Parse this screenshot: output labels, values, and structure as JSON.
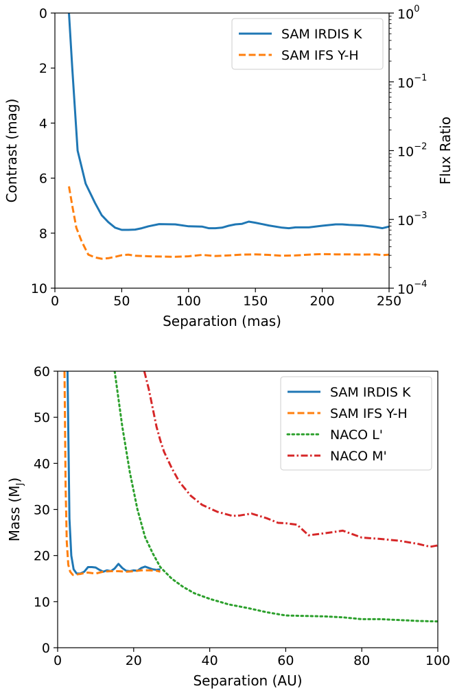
{
  "chart_data": [
    {
      "type": "line",
      "xlabel": "Separation (mas)",
      "ylabel": "Contrast (mag)",
      "y2label": "Flux Ratio",
      "xlim": [
        0,
        250
      ],
      "ylim": [
        10,
        0
      ],
      "y_inverted": true,
      "y2lim": [
        0.0001,
        1
      ],
      "y2_scale": "log",
      "xticks": [
        "0",
        "50",
        "100",
        "150",
        "200",
        "250"
      ],
      "yticks": [
        "0",
        "2",
        "4",
        "6",
        "8",
        "10"
      ],
      "y2ticks": [
        {
          "base": "10",
          "exp": "0"
        },
        {
          "base": "10",
          "exp": "−1"
        },
        {
          "base": "10",
          "exp": "−2"
        },
        {
          "base": "10",
          "exp": "−3"
        },
        {
          "base": "10",
          "exp": "−4"
        }
      ],
      "legend_position": "top-right",
      "series": [
        {
          "name": "SAM IRDIS K",
          "color": "#1f77b4",
          "style": "solid",
          "x": [
            10.5,
            13,
            15,
            17,
            20,
            23,
            27,
            30,
            35,
            40,
            45,
            50,
            55,
            60,
            65,
            70,
            78,
            90,
            100,
            110,
            115,
            120,
            125,
            130,
            135,
            140,
            145,
            150,
            160,
            170,
            175,
            180,
            190,
            200,
            210,
            215,
            220,
            230,
            240,
            245,
            250
          ],
          "values": [
            0,
            2,
            3.5,
            5,
            5.6,
            6.2,
            6.6,
            6.9,
            7.35,
            7.6,
            7.8,
            7.88,
            7.88,
            7.87,
            7.82,
            7.75,
            7.67,
            7.68,
            7.75,
            7.76,
            7.82,
            7.82,
            7.8,
            7.73,
            7.68,
            7.66,
            7.58,
            7.62,
            7.72,
            7.8,
            7.82,
            7.79,
            7.79,
            7.73,
            7.68,
            7.68,
            7.7,
            7.72,
            7.78,
            7.82,
            7.76
          ]
        },
        {
          "name": "SAM IFS Y-H",
          "color": "#ff7f0e",
          "style": "dashed",
          "x": [
            10.5,
            13,
            16,
            20,
            25,
            30,
            35,
            40,
            45,
            50,
            55,
            60,
            70,
            80,
            90,
            100,
            110,
            120,
            130,
            140,
            150,
            160,
            170,
            180,
            190,
            200,
            210,
            220,
            230,
            240,
            245,
            250
          ],
          "values": [
            6.3,
            7,
            7.8,
            8.3,
            8.78,
            8.88,
            8.93,
            8.91,
            8.86,
            8.8,
            8.78,
            8.82,
            8.84,
            8.85,
            8.86,
            8.84,
            8.79,
            8.83,
            8.81,
            8.78,
            8.77,
            8.79,
            8.82,
            8.81,
            8.78,
            8.76,
            8.77,
            8.77,
            8.78,
            8.77,
            8.8,
            8.78
          ]
        }
      ]
    },
    {
      "type": "line",
      "xlabel": "Separation (AU)",
      "ylabel": "Mass (M",
      "ylabel_sub": "J",
      "ylabel_close": ")",
      "xlim": [
        0,
        100
      ],
      "ylim": [
        0,
        60
      ],
      "xticks": [
        "0",
        "20",
        "40",
        "60",
        "80",
        "100"
      ],
      "yticks": [
        "0",
        "10",
        "20",
        "30",
        "40",
        "50",
        "60"
      ],
      "legend_position": "top-right",
      "series": [
        {
          "name": "SAM IRDIS K",
          "color": "#1f77b4",
          "style": "solid",
          "x": [
            2.6,
            3.1,
            3.6,
            4.2,
            5,
            6,
            7,
            8,
            9,
            10,
            11,
            12,
            13,
            14,
            15,
            16,
            17,
            18,
            19,
            20,
            21,
            22,
            23,
            24,
            25,
            26,
            27
          ],
          "values": [
            60,
            28,
            20,
            17,
            16.1,
            16.1,
            16.5,
            17.5,
            17.5,
            17.4,
            16.9,
            16.5,
            16.8,
            16.6,
            17.2,
            18.2,
            17.3,
            16.7,
            16.6,
            16.8,
            16.7,
            17.3,
            17.6,
            17.3,
            17,
            16.9,
            17
          ]
        },
        {
          "name": "SAM IFS Y-H",
          "color": "#ff7f0e",
          "style": "dashed",
          "x": [
            1.8,
            2.1,
            2.4,
            2.8,
            3.3,
            4,
            5,
            6,
            7,
            8,
            9,
            10,
            12,
            14,
            16,
            18,
            20,
            22,
            24,
            26,
            27
          ],
          "values": [
            60,
            35,
            23,
            18,
            16.5,
            15.8,
            15.9,
            16,
            16.2,
            16.3,
            16.2,
            16.1,
            16.5,
            16.6,
            16.6,
            16.5,
            16.6,
            16.8,
            16.8,
            16.7,
            16.5
          ]
        },
        {
          "name": "NACO L'",
          "color": "#2ca02c",
          "style": "dotted",
          "x": [
            15,
            17,
            19,
            21,
            23,
            25,
            27,
            30,
            33,
            36,
            40,
            45,
            50,
            55,
            60,
            65,
            70,
            75,
            80,
            85,
            90,
            95,
            100
          ],
          "values": [
            60,
            48,
            38,
            30,
            24,
            20.5,
            17.5,
            15,
            13.2,
            11.8,
            10.6,
            9.4,
            8.6,
            7.7,
            7,
            6.9,
            6.8,
            6.6,
            6.2,
            6.2,
            6,
            5.8,
            5.7
          ]
        },
        {
          "name": "NACO M'",
          "color": "#d62728",
          "style": "dashdot",
          "x": [
            22.8,
            24,
            25,
            26,
            27,
            28,
            30,
            32,
            35,
            38,
            42,
            46,
            48,
            51,
            55,
            58,
            60,
            63,
            66,
            70,
            75,
            80,
            85,
            90,
            95,
            98,
            100
          ],
          "values": [
            60,
            56,
            52,
            48,
            45,
            42.5,
            39,
            36,
            33,
            31,
            29.5,
            28.6,
            28.7,
            29.1,
            28.1,
            27.1,
            27,
            26.7,
            24.4,
            24.8,
            25.4,
            23.9,
            23.6,
            23.2,
            22.5,
            21.9,
            22.2
          ]
        }
      ]
    }
  ]
}
